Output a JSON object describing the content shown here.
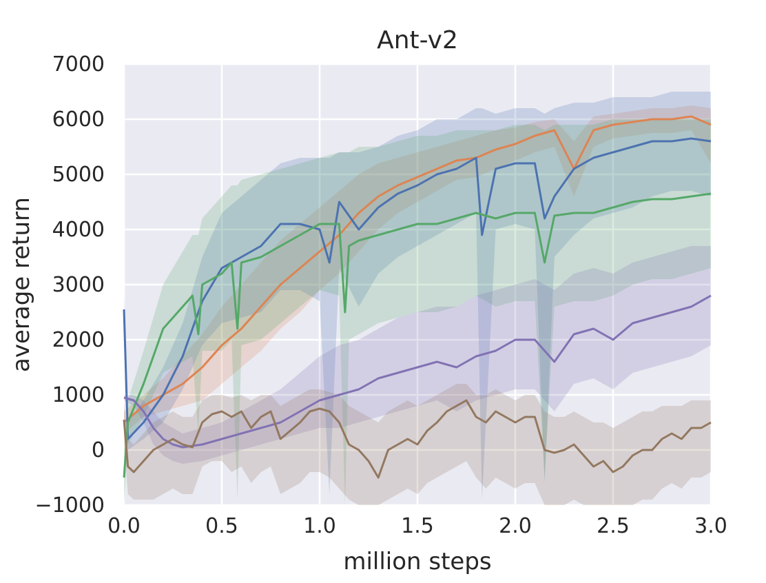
{
  "chart_data": {
    "type": "line",
    "title": "Ant-v2",
    "xlabel": "million steps",
    "ylabel": "average return",
    "xlim": [
      0.0,
      3.0
    ],
    "ylim": [
      -1000,
      7000
    ],
    "xticks": [
      "0.0",
      "0.5",
      "1.0",
      "1.5",
      "2.0",
      "2.5",
      "3.0"
    ],
    "yticks": [
      "7000",
      "6000",
      "5000",
      "4000",
      "3000",
      "2000",
      "1000",
      "0",
      "−1000"
    ],
    "grid": true,
    "background": "#eaeaf2",
    "series": [
      {
        "color": "#dd8452",
        "x": [
          0.0,
          0.1,
          0.2,
          0.3,
          0.4,
          0.5,
          0.6,
          0.7,
          0.8,
          0.9,
          1.0,
          1.1,
          1.2,
          1.3,
          1.4,
          1.5,
          1.6,
          1.7,
          1.8,
          1.9,
          2.0,
          2.1,
          2.2,
          2.3,
          2.4,
          2.5,
          2.6,
          2.7,
          2.8,
          2.9,
          3.0
        ],
        "y": [
          500,
          800,
          1000,
          1200,
          1500,
          1900,
          2200,
          2600,
          3000,
          3300,
          3600,
          3900,
          4300,
          4600,
          4800,
          4950,
          5100,
          5250,
          5300,
          5450,
          5550,
          5700,
          5800,
          5100,
          5800,
          5900,
          5950,
          6000,
          6000,
          6050,
          5900
        ],
        "upper": [
          700,
          1000,
          1300,
          1700,
          2100,
          2600,
          3000,
          3400,
          3800,
          4100,
          4400,
          4700,
          5000,
          5200,
          5300,
          5400,
          5500,
          5600,
          5700,
          5800,
          5850,
          5950,
          6000,
          5600,
          6050,
          6100,
          6150,
          6200,
          6200,
          6250,
          6200
        ],
        "lower": [
          300,
          600,
          700,
          800,
          900,
          1200,
          1500,
          1800,
          2200,
          2500,
          2900,
          3200,
          3600,
          4000,
          4300,
          4500,
          4700,
          4900,
          4950,
          5100,
          5250,
          5400,
          5500,
          4600,
          5500,
          5650,
          5700,
          5750,
          5750,
          5800,
          5200
        ]
      },
      {
        "color": "#4c72b0",
        "x": [
          0.0,
          0.02,
          0.1,
          0.2,
          0.3,
          0.4,
          0.5,
          0.6,
          0.7,
          0.8,
          0.9,
          1.0,
          1.05,
          1.1,
          1.2,
          1.3,
          1.4,
          1.5,
          1.6,
          1.7,
          1.8,
          1.83,
          1.9,
          2.0,
          2.1,
          2.15,
          2.2,
          2.3,
          2.4,
          2.5,
          2.6,
          2.7,
          2.8,
          2.9,
          3.0
        ],
        "y": [
          2550,
          200,
          500,
          1000,
          1700,
          2700,
          3300,
          3500,
          3700,
          4100,
          4100,
          4000,
          3400,
          4500,
          4000,
          4400,
          4650,
          4800,
          5000,
          5100,
          5300,
          3900,
          5100,
          5200,
          5200,
          4200,
          4600,
          5100,
          5300,
          5400,
          5500,
          5600,
          5600,
          5650,
          5600
        ],
        "upper": [
          2800,
          500,
          900,
          1500,
          2300,
          3500,
          4300,
          4600,
          4900,
          5200,
          5300,
          5300,
          5300,
          5400,
          5400,
          5500,
          5700,
          5800,
          6000,
          6000,
          6200,
          6200,
          6100,
          6200,
          6200,
          6100,
          6200,
          6300,
          6300,
          6400,
          6400,
          6400,
          6500,
          6500,
          6500
        ],
        "lower": [
          2200,
          0,
          200,
          500,
          1100,
          1900,
          2300,
          2400,
          2500,
          2900,
          2900,
          2700,
          -800,
          3300,
          2600,
          3200,
          3500,
          3700,
          3900,
          4100,
          4300,
          -900,
          4000,
          4100,
          4000,
          -600,
          3500,
          3900,
          4200,
          4300,
          4400,
          4600,
          4700,
          4700,
          4600
        ]
      },
      {
        "color": "#55a868",
        "x": [
          0.0,
          0.02,
          0.1,
          0.2,
          0.3,
          0.35,
          0.38,
          0.4,
          0.5,
          0.55,
          0.58,
          0.6,
          0.7,
          0.8,
          0.9,
          1.0,
          1.1,
          1.13,
          1.15,
          1.2,
          1.3,
          1.4,
          1.5,
          1.6,
          1.7,
          1.8,
          1.9,
          2.0,
          2.1,
          2.15,
          2.2,
          2.3,
          2.4,
          2.5,
          2.6,
          2.7,
          2.8,
          2.9,
          3.0
        ],
        "y": [
          -500,
          500,
          1200,
          2200,
          2600,
          2800,
          2100,
          3000,
          3200,
          3400,
          2200,
          3400,
          3500,
          3700,
          3900,
          4100,
          4100,
          2500,
          3700,
          3800,
          3900,
          4000,
          4100,
          4100,
          4200,
          4300,
          4200,
          4300,
          4300,
          3400,
          4250,
          4300,
          4300,
          4400,
          4500,
          4550,
          4550,
          4600,
          4650
        ],
        "upper": [
          0,
          900,
          1800,
          3000,
          3600,
          3900,
          3900,
          4200,
          4600,
          4800,
          4800,
          4900,
          5000,
          5100,
          5200,
          5300,
          5400,
          5400,
          5400,
          5500,
          5500,
          5600,
          5700,
          5700,
          5800,
          5800,
          5800,
          5900,
          5900,
          5800,
          5900,
          5900,
          5900,
          6000,
          6000,
          6000,
          6000,
          6000,
          6000
        ],
        "lower": [
          -1000,
          100,
          600,
          1400,
          1600,
          1700,
          300,
          1800,
          1800,
          2000,
          -900,
          1900,
          2000,
          2300,
          2600,
          2900,
          2800,
          -1000,
          2000,
          2100,
          2300,
          2400,
          2500,
          2500,
          2600,
          2800,
          2600,
          2700,
          2700,
          -500,
          2600,
          2700,
          2700,
          2800,
          3000,
          3100,
          3100,
          3200,
          3300
        ]
      },
      {
        "color": "#8172b3",
        "x": [
          0.0,
          0.05,
          0.1,
          0.15,
          0.2,
          0.25,
          0.3,
          0.4,
          0.5,
          0.6,
          0.7,
          0.8,
          0.9,
          1.0,
          1.1,
          1.2,
          1.3,
          1.4,
          1.5,
          1.6,
          1.7,
          1.8,
          1.9,
          2.0,
          2.1,
          2.2,
          2.3,
          2.4,
          2.5,
          2.6,
          2.7,
          2.8,
          2.9,
          3.0
        ],
        "y": [
          950,
          900,
          700,
          400,
          200,
          100,
          50,
          100,
          200,
          300,
          400,
          500,
          700,
          900,
          1000,
          1100,
          1300,
          1400,
          1500,
          1600,
          1500,
          1700,
          1800,
          2000,
          2000,
          1600,
          2100,
          2200,
          2000,
          2300,
          2400,
          2500,
          2600,
          2800
        ],
        "upper": [
          1000,
          1000,
          900,
          700,
          500,
          400,
          300,
          400,
          500,
          700,
          900,
          1100,
          1400,
          1700,
          1900,
          2000,
          2200,
          2400,
          2500,
          2600,
          2600,
          2800,
          2900,
          3000,
          3100,
          2900,
          3200,
          3300,
          3200,
          3400,
          3500,
          3600,
          3700,
          3700
        ],
        "lower": [
          900,
          800,
          500,
          100,
          -100,
          -200,
          -250,
          -200,
          -100,
          0,
          100,
          200,
          300,
          400,
          400,
          500,
          600,
          700,
          800,
          900,
          700,
          900,
          1000,
          1100,
          1100,
          700,
          1200,
          1300,
          1100,
          1400,
          1500,
          1600,
          1700,
          1900
        ]
      },
      {
        "color": "#937860",
        "x": [
          0.0,
          0.02,
          0.05,
          0.1,
          0.15,
          0.2,
          0.25,
          0.3,
          0.35,
          0.4,
          0.45,
          0.5,
          0.55,
          0.6,
          0.65,
          0.7,
          0.75,
          0.8,
          0.85,
          0.9,
          0.95,
          1.0,
          1.05,
          1.1,
          1.15,
          1.2,
          1.25,
          1.3,
          1.35,
          1.4,
          1.45,
          1.5,
          1.55,
          1.6,
          1.65,
          1.7,
          1.75,
          1.8,
          1.85,
          1.9,
          1.95,
          2.0,
          2.05,
          2.1,
          2.15,
          2.2,
          2.25,
          2.3,
          2.35,
          2.4,
          2.45,
          2.5,
          2.55,
          2.6,
          2.65,
          2.7,
          2.75,
          2.8,
          2.85,
          2.9,
          2.95,
          3.0
        ],
        "y": [
          550,
          -300,
          -400,
          -200,
          0,
          100,
          200,
          100,
          50,
          500,
          650,
          700,
          600,
          700,
          400,
          600,
          700,
          200,
          350,
          500,
          700,
          750,
          700,
          500,
          100,
          0,
          -200,
          -500,
          0,
          100,
          200,
          100,
          350,
          500,
          700,
          800,
          900,
          600,
          500,
          700,
          600,
          500,
          600,
          600,
          0,
          -50,
          0,
          100,
          -100,
          -300,
          -200,
          -400,
          -300,
          -100,
          0,
          0,
          200,
          300,
          200,
          400,
          400,
          500
        ],
        "upper": [
          900,
          200,
          100,
          300,
          500,
          600,
          700,
          600,
          600,
          900,
          1000,
          1000,
          950,
          1000,
          900,
          1000,
          1000,
          800,
          900,
          1000,
          1100,
          1100,
          1050,
          1000,
          800,
          700,
          600,
          500,
          700,
          800,
          900,
          800,
          900,
          1000,
          1100,
          1200,
          1200,
          1000,
          1000,
          1100,
          1000,
          900,
          1000,
          1000,
          700,
          600,
          600,
          700,
          600,
          500,
          500,
          400,
          500,
          600,
          700,
          700,
          800,
          800,
          800,
          900,
          900,
          900
        ],
        "lower": [
          200,
          -800,
          -900,
          -900,
          -900,
          -800,
          -700,
          -800,
          -800,
          -300,
          -200,
          -200,
          -400,
          -300,
          -600,
          -400,
          -300,
          -800,
          -700,
          -600,
          -400,
          -400,
          -500,
          -700,
          -900,
          -1000,
          -1000,
          -1000,
          -900,
          -800,
          -700,
          -800,
          -600,
          -500,
          -400,
          -300,
          -200,
          -500,
          -700,
          -500,
          -600,
          -700,
          -600,
          -600,
          -1000,
          -1000,
          -1000,
          -900,
          -1000,
          -1000,
          -1000,
          -1000,
          -1000,
          -1000,
          -900,
          -900,
          -700,
          -600,
          -700,
          -500,
          -500,
          -400
        ]
      }
    ]
  }
}
